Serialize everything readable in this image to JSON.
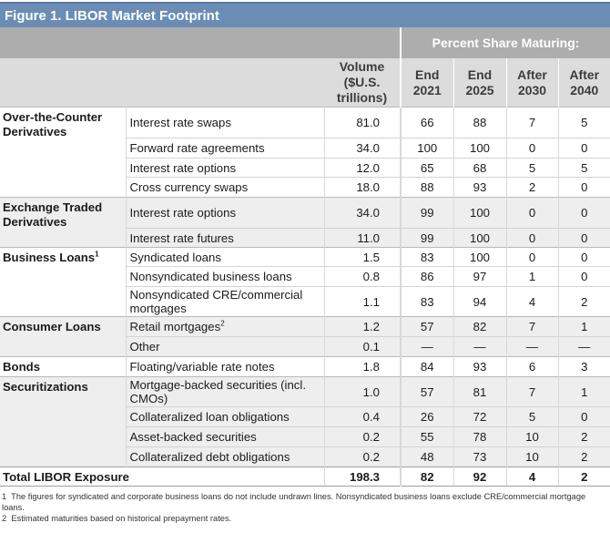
{
  "title": "Figure 1. LIBOR Market Footprint",
  "group_header": "Percent Share Maturing:",
  "columns": {
    "volume": [
      "Volume",
      "($U.S.",
      "trillions)"
    ],
    "end2021": [
      "End",
      "2021"
    ],
    "end2025": [
      "End",
      "2025"
    ],
    "after2030": [
      "After",
      "2030"
    ],
    "after2040": [
      "After",
      "2040"
    ]
  },
  "sections": [
    {
      "category": "Over-the-Counter Derivatives",
      "rows": [
        {
          "item": "Interest rate swaps",
          "volume": "81.0",
          "end2021": "66",
          "end2025": "88",
          "after2030": "7",
          "after2040": "5"
        },
        {
          "item": "Forward rate agreements",
          "volume": "34.0",
          "end2021": "100",
          "end2025": "100",
          "after2030": "0",
          "after2040": "0"
        },
        {
          "item": "Interest rate options",
          "volume": "12.0",
          "end2021": "65",
          "end2025": "68",
          "after2030": "5",
          "after2040": "5"
        },
        {
          "item": "Cross currency swaps",
          "volume": "18.0",
          "end2021": "88",
          "end2025": "93",
          "after2030": "2",
          "after2040": "0"
        }
      ]
    },
    {
      "category": "Exchange Traded Derivatives",
      "rows": [
        {
          "item": "Interest rate options",
          "volume": "34.0",
          "end2021": "99",
          "end2025": "100",
          "after2030": "0",
          "after2040": "0"
        },
        {
          "item": "Interest rate futures",
          "volume": "11.0",
          "end2021": "99",
          "end2025": "100",
          "after2030": "0",
          "after2040": "0"
        }
      ]
    },
    {
      "category": "Business Loans",
      "category_sup": "1",
      "rows": [
        {
          "item": "Syndicated loans",
          "volume": "1.5",
          "end2021": "83",
          "end2025": "100",
          "after2030": "0",
          "after2040": "0"
        },
        {
          "item": "Nonsyndicated business loans",
          "volume": "0.8",
          "end2021": "86",
          "end2025": "97",
          "after2030": "1",
          "after2040": "0"
        },
        {
          "item": "Nonsyndicated CRE/commercial mortgages",
          "volume": "1.1",
          "end2021": "83",
          "end2025": "94",
          "after2030": "4",
          "after2040": "2"
        }
      ]
    },
    {
      "category": "Consumer Loans",
      "rows": [
        {
          "item": "Retail mortgages",
          "item_sup": "2",
          "volume": "1.2",
          "end2021": "57",
          "end2025": "82",
          "after2030": "7",
          "after2040": "1"
        },
        {
          "item": "Other",
          "volume": "0.1",
          "end2021": "—",
          "end2025": "—",
          "after2030": "—",
          "after2040": "—"
        }
      ]
    },
    {
      "category": "Bonds",
      "rows": [
        {
          "item": "Floating/variable rate notes",
          "volume": "1.8",
          "end2021": "84",
          "end2025": "93",
          "after2030": "6",
          "after2040": "3"
        }
      ]
    },
    {
      "category": "Securitizations",
      "rows": [
        {
          "item": "Mortgage-backed securities (incl. CMOs)",
          "volume": "1.0",
          "end2021": "57",
          "end2025": "81",
          "after2030": "7",
          "after2040": "1"
        },
        {
          "item": "Collateralized loan obligations",
          "volume": "0.4",
          "end2021": "26",
          "end2025": "72",
          "after2030": "5",
          "after2040": "0"
        },
        {
          "item": "Asset-backed securities",
          "volume": "0.2",
          "end2021": "55",
          "end2025": "78",
          "after2030": "10",
          "after2040": "2"
        },
        {
          "item": "Collateralized debt obligations",
          "volume": "0.2",
          "end2021": "48",
          "end2025": "73",
          "after2030": "10",
          "after2040": "2"
        }
      ]
    }
  ],
  "total": {
    "label": "Total LIBOR Exposure",
    "volume": "198.3",
    "end2021": "82",
    "end2025": "92",
    "after2030": "4",
    "after2040": "2"
  },
  "footnotes": [
    {
      "num": "1",
      "text": "The figures for syndicated and corporate business loans do not include undrawn lines. Nonsyndicated business loans exclude CRE/commercial mortgage loans."
    },
    {
      "num": "2",
      "text": "Estimated maturities based on historical prepayment rates."
    }
  ]
}
